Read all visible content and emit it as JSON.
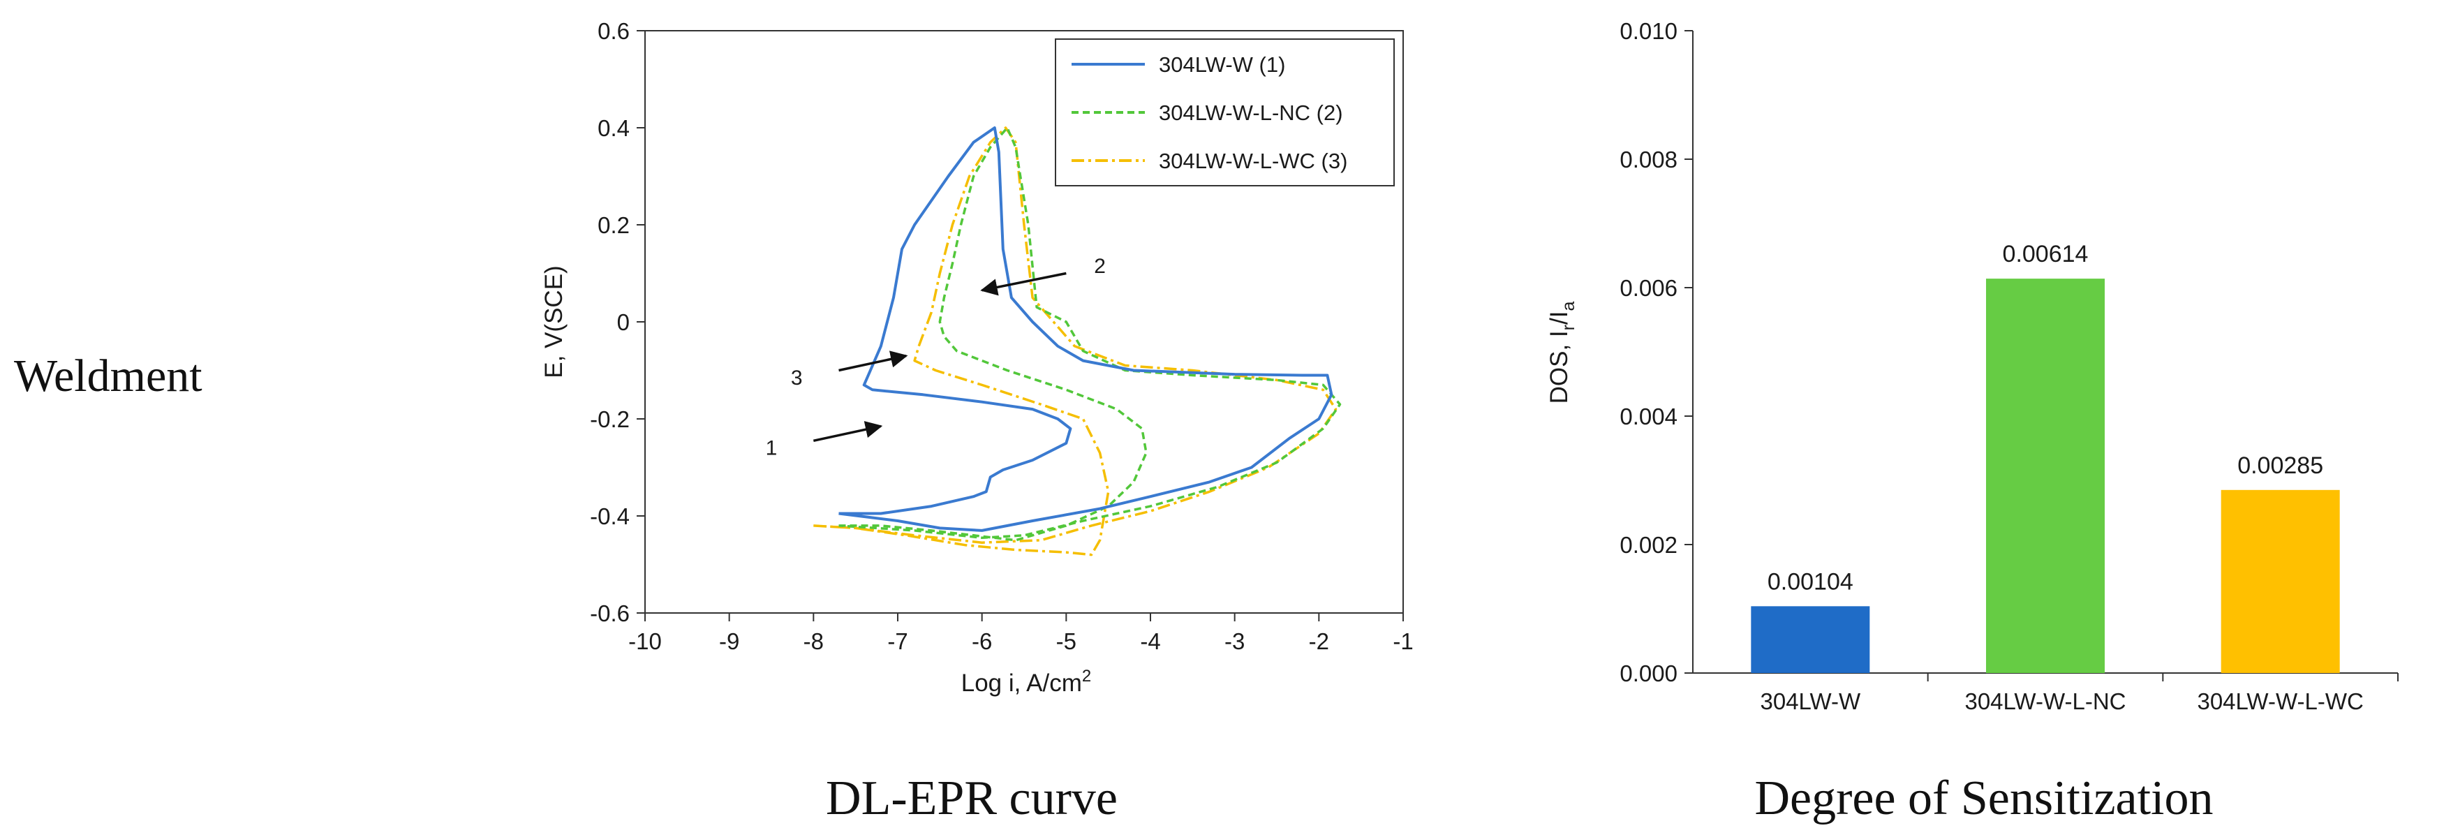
{
  "row_label": "Weldment",
  "captions": {
    "left": "DL-EPR curve",
    "right": "Degree of Sensitization"
  },
  "colors": {
    "series1": "#3a7ad0",
    "series2": "#52c73a",
    "series3": "#f5be00",
    "bar1": "#1f6cc7",
    "bar2": "#66cc44",
    "bar3": "#ffc000",
    "axis": "#333333",
    "arrow": "#111111"
  },
  "chart_data": [
    {
      "type": "line",
      "title": "",
      "xlabel": "Log i, A/cm",
      "xlabel_sup": "2",
      "ylabel": "E, V(SCE)",
      "xlim": [
        -10,
        -1
      ],
      "ylim": [
        -0.6,
        0.6
      ],
      "x_ticks": [
        "-10",
        "-9",
        "-8",
        "-7",
        "-6",
        "-5",
        "-4",
        "-3",
        "-2",
        "-1"
      ],
      "y_ticks": [
        "0.6",
        "0.4",
        "0.2",
        "0",
        "-0.2",
        "-0.4",
        "-0.6"
      ],
      "legend_position": "top-right",
      "series": [
        {
          "name": "304LW-W (1)",
          "style": "solid",
          "points": [
            [
              -7.7,
              -0.395
            ],
            [
              -7.2,
              -0.395
            ],
            [
              -6.6,
              -0.38
            ],
            [
              -6.1,
              -0.36
            ],
            [
              -5.95,
              -0.35
            ],
            [
              -5.9,
              -0.32
            ],
            [
              -5.75,
              -0.305
            ],
            [
              -5.4,
              -0.285
            ],
            [
              -5.0,
              -0.25
            ],
            [
              -4.95,
              -0.22
            ],
            [
              -5.1,
              -0.2
            ],
            [
              -5.4,
              -0.18
            ],
            [
              -6.0,
              -0.165
            ],
            [
              -6.7,
              -0.15
            ],
            [
              -7.3,
              -0.14
            ],
            [
              -7.4,
              -0.13
            ],
            [
              -7.35,
              -0.11
            ],
            [
              -7.2,
              -0.05
            ],
            [
              -7.05,
              0.05
            ],
            [
              -6.95,
              0.15
            ],
            [
              -6.8,
              0.2
            ],
            [
              -6.4,
              0.3
            ],
            [
              -6.1,
              0.37
            ],
            [
              -5.85,
              0.4
            ],
            [
              -5.8,
              0.35
            ],
            [
              -5.75,
              0.15
            ],
            [
              -5.65,
              0.05
            ],
            [
              -5.4,
              0.0
            ],
            [
              -5.1,
              -0.05
            ],
            [
              -4.8,
              -0.08
            ],
            [
              -4.2,
              -0.1
            ],
            [
              -3.0,
              -0.108
            ],
            [
              -2.2,
              -0.11
            ],
            [
              -1.9,
              -0.11
            ],
            [
              -1.85,
              -0.15
            ],
            [
              -2.0,
              -0.2
            ],
            [
              -2.35,
              -0.24
            ],
            [
              -2.8,
              -0.3
            ],
            [
              -3.3,
              -0.33
            ],
            [
              -4.0,
              -0.36
            ],
            [
              -4.6,
              -0.385
            ],
            [
              -5.4,
              -0.41
            ],
            [
              -6.0,
              -0.43
            ],
            [
              -6.5,
              -0.425
            ],
            [
              -7.0,
              -0.41
            ],
            [
              -7.7,
              -0.395
            ]
          ]
        },
        {
          "name": "304LW-W-L-NC (2)",
          "style": "dashed",
          "points": [
            [
              -7.7,
              -0.42
            ],
            [
              -7.2,
              -0.42
            ],
            [
              -6.6,
              -0.43
            ],
            [
              -6.1,
              -0.44
            ],
            [
              -5.6,
              -0.45
            ],
            [
              -5.0,
              -0.42
            ],
            [
              -4.5,
              -0.38
            ],
            [
              -4.2,
              -0.33
            ],
            [
              -4.05,
              -0.27
            ],
            [
              -4.1,
              -0.22
            ],
            [
              -4.4,
              -0.18
            ],
            [
              -5.0,
              -0.14
            ],
            [
              -5.7,
              -0.1
            ],
            [
              -6.3,
              -0.06
            ],
            [
              -6.45,
              -0.03
            ],
            [
              -6.5,
              0.0
            ],
            [
              -6.45,
              0.05
            ],
            [
              -6.35,
              0.12
            ],
            [
              -6.25,
              0.2
            ],
            [
              -6.1,
              0.3
            ],
            [
              -5.9,
              0.36
            ],
            [
              -5.7,
              0.4
            ],
            [
              -5.6,
              0.36
            ],
            [
              -5.45,
              0.2
            ],
            [
              -5.35,
              0.03
            ],
            [
              -5.0,
              0.0
            ],
            [
              -4.8,
              -0.06
            ],
            [
              -4.3,
              -0.1
            ],
            [
              -3.5,
              -0.11
            ],
            [
              -2.5,
              -0.12
            ],
            [
              -1.95,
              -0.13
            ],
            [
              -1.75,
              -0.17
            ],
            [
              -1.95,
              -0.22
            ],
            [
              -2.5,
              -0.29
            ],
            [
              -3.2,
              -0.34
            ],
            [
              -4.0,
              -0.38
            ],
            [
              -4.8,
              -0.41
            ],
            [
              -5.5,
              -0.44
            ],
            [
              -6.0,
              -0.445
            ],
            [
              -6.8,
              -0.43
            ],
            [
              -7.7,
              -0.42
            ]
          ]
        },
        {
          "name": "304LW-W-L-WC (3)",
          "style": "dashdot",
          "points": [
            [
              -8.0,
              -0.42
            ],
            [
              -7.5,
              -0.425
            ],
            [
              -6.9,
              -0.44
            ],
            [
              -6.2,
              -0.46
            ],
            [
              -5.6,
              -0.47
            ],
            [
              -5.0,
              -0.475
            ],
            [
              -4.7,
              -0.48
            ],
            [
              -4.6,
              -0.45
            ],
            [
              -4.5,
              -0.35
            ],
            [
              -4.6,
              -0.27
            ],
            [
              -4.8,
              -0.2
            ],
            [
              -5.3,
              -0.17
            ],
            [
              -6.0,
              -0.13
            ],
            [
              -6.55,
              -0.1
            ],
            [
              -6.8,
              -0.08
            ],
            [
              -6.75,
              -0.05
            ],
            [
              -6.6,
              0.02
            ],
            [
              -6.5,
              0.1
            ],
            [
              -6.35,
              0.2
            ],
            [
              -6.15,
              0.3
            ],
            [
              -5.9,
              0.37
            ],
            [
              -5.72,
              0.4
            ],
            [
              -5.6,
              0.37
            ],
            [
              -5.5,
              0.2
            ],
            [
              -5.4,
              0.05
            ],
            [
              -5.15,
              0.0
            ],
            [
              -4.9,
              -0.05
            ],
            [
              -4.3,
              -0.09
            ],
            [
              -3.5,
              -0.1
            ],
            [
              -2.5,
              -0.12
            ],
            [
              -1.95,
              -0.14
            ],
            [
              -1.8,
              -0.18
            ],
            [
              -2.0,
              -0.23
            ],
            [
              -2.6,
              -0.3
            ],
            [
              -3.3,
              -0.35
            ],
            [
              -4.0,
              -0.39
            ],
            [
              -4.7,
              -0.42
            ],
            [
              -5.3,
              -0.45
            ],
            [
              -6.0,
              -0.455
            ],
            [
              -6.8,
              -0.44
            ],
            [
              -7.5,
              -0.425
            ],
            [
              -8.0,
              -0.42
            ]
          ]
        }
      ],
      "annotations": [
        {
          "text": "1",
          "label_at": [
            -8.5,
            -0.26
          ],
          "arrow_from": [
            -8.0,
            -0.245
          ],
          "arrow_to": [
            -7.2,
            -0.215
          ]
        },
        {
          "text": "2",
          "label_at": [
            -4.6,
            0.115
          ],
          "arrow_from": [
            -5.0,
            0.1
          ],
          "arrow_to": [
            -6.0,
            0.065
          ]
        },
        {
          "text": "3",
          "label_at": [
            -8.2,
            -0.115
          ],
          "arrow_from": [
            -7.7,
            -0.1
          ],
          "arrow_to": [
            -6.9,
            -0.07
          ]
        }
      ]
    },
    {
      "type": "bar",
      "title": "",
      "categories": [
        "304LW-W",
        "304LW-W-L-NC",
        "304LW-W-L-WC"
      ],
      "values": [
        0.00104,
        0.00614,
        0.00285
      ],
      "data_labels": [
        "0.00104",
        "0.00614",
        "0.00285"
      ],
      "xlabel": "",
      "ylabel": "DOS, I",
      "ylabel_sub1": "r",
      "ylabel_mid": "/I",
      "ylabel_sub2": "a",
      "ylim": [
        0,
        0.01
      ],
      "y_ticks": [
        "0.010",
        "0.008",
        "0.006",
        "0.004",
        "0.002",
        "0.000"
      ]
    }
  ]
}
